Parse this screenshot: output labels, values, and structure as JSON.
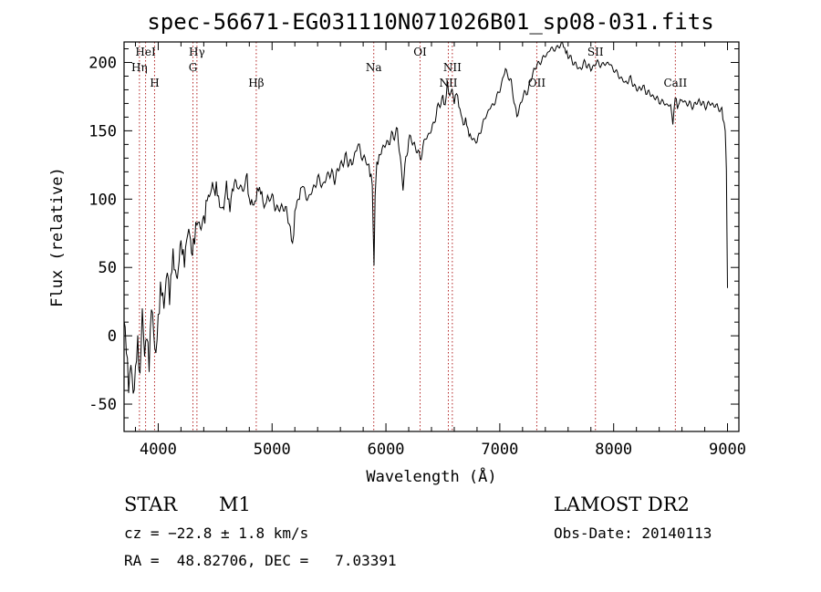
{
  "chart_data": {
    "type": "line",
    "title": "spec-56671-EG031110N071026B01_sp08-031.fits",
    "xlabel": "Wavelength (Å)",
    "ylabel": "Flux (relative)",
    "xlim": [
      3700,
      9100
    ],
    "ylim": [
      -70,
      215
    ],
    "x_ticks": [
      4000,
      5000,
      6000,
      7000,
      8000,
      9000
    ],
    "y_ticks": [
      -50,
      0,
      50,
      100,
      150,
      200
    ],
    "series": [
      {
        "name": "flux",
        "x": [
          3700,
          3720,
          3740,
          3760,
          3780,
          3800,
          3820,
          3840,
          3860,
          3880,
          3900,
          3920,
          3940,
          3960,
          3980,
          4000,
          4020,
          4050,
          4080,
          4100,
          4130,
          4160,
          4200,
          4230,
          4260,
          4300,
          4330,
          4360,
          4400,
          4430,
          4460,
          4500,
          4530,
          4560,
          4600,
          4630,
          4660,
          4700,
          4740,
          4780,
          4800,
          4830,
          4860,
          4880,
          4900,
          4930,
          4960,
          5000,
          5050,
          5100,
          5150,
          5180,
          5200,
          5230,
          5260,
          5300,
          5350,
          5400,
          5450,
          5500,
          5550,
          5600,
          5650,
          5700,
          5750,
          5800,
          5850,
          5880,
          5895,
          5905,
          5920,
          5950,
          6000,
          6050,
          6100,
          6150,
          6200,
          6250,
          6300,
          6350,
          6400,
          6450,
          6500,
          6520,
          6540,
          6560,
          6580,
          6600,
          6620,
          6650,
          6680,
          6700,
          6720,
          6750,
          6800,
          6850,
          6900,
          6950,
          7000,
          7050,
          7100,
          7150,
          7200,
          7250,
          7300,
          7350,
          7400,
          7450,
          7500,
          7550,
          7580,
          7600,
          7650,
          7700,
          7750,
          7800,
          7850,
          7900,
          7950,
          8000,
          8050,
          8100,
          8150,
          8200,
          8250,
          8300,
          8350,
          8400,
          8450,
          8500,
          8520,
          8540,
          8560,
          8600,
          8650,
          8700,
          8750,
          8800,
          8850,
          8900,
          8950,
          8980,
          8990,
          9000
        ],
        "values": [
          15,
          -10,
          -35,
          -20,
          -45,
          -25,
          -5,
          -30,
          15,
          -10,
          0,
          -20,
          20,
          5,
          -15,
          10,
          35,
          25,
          45,
          30,
          60,
          40,
          65,
          55,
          75,
          60,
          80,
          85,
          85,
          100,
          105,
          110,
          100,
          90,
          105,
          95,
          110,
          110,
          105,
          115,
          100,
          95,
          100,
          110,
          105,
          95,
          100,
          100,
          92,
          95,
          85,
          65,
          90,
          100,
          110,
          100,
          105,
          115,
          110,
          120,
          115,
          125,
          130,
          125,
          140,
          130,
          125,
          110,
          55,
          100,
          125,
          135,
          140,
          145,
          150,
          110,
          145,
          140,
          130,
          145,
          150,
          165,
          175,
          168,
          185,
          175,
          180,
          172,
          178,
          165,
          155,
          158,
          150,
          145,
          142,
          155,
          165,
          170,
          180,
          195,
          185,
          160,
          175,
          180,
          195,
          200,
          205,
          210,
          210,
          215,
          208,
          205,
          200,
          195,
          200,
          195,
          200,
          198,
          200,
          195,
          190,
          185,
          188,
          180,
          182,
          178,
          175,
          172,
          170,
          168,
          155,
          175,
          168,
          172,
          170,
          168,
          172,
          168,
          170,
          168,
          165,
          150,
          120,
          35
        ]
      }
    ],
    "line_markers": [
      {
        "label": "Hη",
        "wavelength": 3835
      },
      {
        "label": "HeI",
        "wavelength": 3889
      },
      {
        "label": "H",
        "wavelength": 3968
      },
      {
        "label": "Hγ",
        "wavelength": 4340
      },
      {
        "label": "G",
        "wavelength": 4305
      },
      {
        "label": "Hβ",
        "wavelength": 4861
      },
      {
        "label": "Na",
        "wavelength": 5893
      },
      {
        "label": "OI",
        "wavelength": 6300
      },
      {
        "label": "NII",
        "wavelength": 6583
      },
      {
        "label": "NII",
        "wavelength": 6548
      },
      {
        "label": "OII",
        "wavelength": 7325
      },
      {
        "label": "SII",
        "wavelength": 7840
      },
      {
        "label": "CaII",
        "wavelength": 8542
      }
    ]
  },
  "info": {
    "class": "STAR",
    "subclass": "M1",
    "survey": "LAMOST DR2",
    "cz": "cz = −22.8 ± 1.8 km/s",
    "obs_date": "Obs-Date: 20140113",
    "radec": "RA =  48.82706, DEC =   7.03391"
  },
  "colors": {
    "axes": "#000000",
    "spectrum": "#000000",
    "marker_line": "#b22222"
  }
}
